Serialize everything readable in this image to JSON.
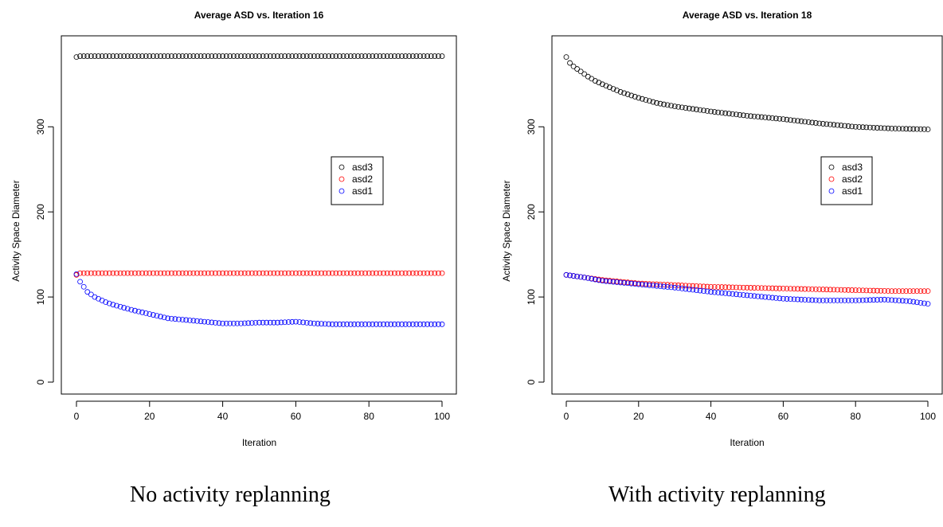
{
  "captions": {
    "left": "No activity replanning",
    "right": "With activity replanning"
  },
  "colors": {
    "asd3": "#000000",
    "asd2": "#ff0000",
    "asd1": "#0000ff"
  },
  "chart_data": [
    {
      "type": "scatter",
      "title": "Average ASD vs. Iteration 16",
      "xlabel": "Iteration",
      "ylabel": "Activity Space Diameter",
      "xlim": [
        0,
        100
      ],
      "ylim": [
        0,
        385
      ],
      "xticks": [
        "0",
        "20",
        "40",
        "60",
        "80",
        "100"
      ],
      "yticks": [
        "0",
        "100",
        "200",
        "300"
      ],
      "legend_position": "right-center",
      "series": [
        {
          "name": "asd3",
          "color": "#000000",
          "anchors": [
            [
              0,
              382
            ],
            [
              1,
              383
            ],
            [
              100,
              383
            ]
          ]
        },
        {
          "name": "asd2",
          "color": "#ff0000",
          "anchors": [
            [
              0,
              126
            ],
            [
              1,
              128
            ],
            [
              100,
              128
            ]
          ]
        },
        {
          "name": "asd1",
          "color": "#0000ff",
          "anchors": [
            [
              0,
              127
            ],
            [
              1,
              118
            ],
            [
              2,
              112
            ],
            [
              3,
              106
            ],
            [
              5,
              100
            ],
            [
              8,
              94
            ],
            [
              10,
              91
            ],
            [
              15,
              85
            ],
            [
              20,
              80
            ],
            [
              25,
              75
            ],
            [
              30,
              73
            ],
            [
              35,
              71
            ],
            [
              40,
              69
            ],
            [
              45,
              69
            ],
            [
              50,
              70
            ],
            [
              55,
              70
            ],
            [
              60,
              71
            ],
            [
              65,
              69
            ],
            [
              70,
              68
            ],
            [
              80,
              68
            ],
            [
              90,
              68
            ],
            [
              100,
              68
            ]
          ]
        }
      ]
    },
    {
      "type": "scatter",
      "title": "Average ASD vs. Iteration 18",
      "xlabel": "Iteration",
      "ylabel": "Activity Space Diameter",
      "xlim": [
        0,
        100
      ],
      "ylim": [
        0,
        385
      ],
      "xticks": [
        "0",
        "20",
        "40",
        "60",
        "80",
        "100"
      ],
      "yticks": [
        "0",
        "100",
        "200",
        "300"
      ],
      "legend_position": "right-center",
      "series": [
        {
          "name": "asd3",
          "color": "#000000",
          "anchors": [
            [
              0,
              382
            ],
            [
              1,
              375
            ],
            [
              2,
              371
            ],
            [
              4,
              365
            ],
            [
              6,
              359
            ],
            [
              8,
              354
            ],
            [
              10,
              350
            ],
            [
              15,
              341
            ],
            [
              20,
              334
            ],
            [
              25,
              328
            ],
            [
              30,
              324
            ],
            [
              40,
              318
            ],
            [
              50,
              313
            ],
            [
              60,
              309
            ],
            [
              70,
              304
            ],
            [
              80,
              300
            ],
            [
              90,
              298
            ],
            [
              100,
              297
            ]
          ]
        },
        {
          "name": "asd2",
          "color": "#ff0000",
          "anchors": [
            [
              0,
              126
            ],
            [
              5,
              123
            ],
            [
              10,
              120
            ],
            [
              20,
              116
            ],
            [
              30,
              114
            ],
            [
              40,
              112
            ],
            [
              50,
              111
            ],
            [
              60,
              110
            ],
            [
              70,
              109
            ],
            [
              80,
              108
            ],
            [
              90,
              107
            ],
            [
              100,
              107
            ]
          ]
        },
        {
          "name": "asd1",
          "color": "#0000ff",
          "anchors": [
            [
              0,
              126
            ],
            [
              5,
              123
            ],
            [
              10,
              119
            ],
            [
              20,
              115
            ],
            [
              30,
              111
            ],
            [
              40,
              106
            ],
            [
              50,
              102
            ],
            [
              60,
              98
            ],
            [
              70,
              96
            ],
            [
              80,
              96
            ],
            [
              88,
              97
            ],
            [
              95,
              95
            ],
            [
              100,
              92
            ]
          ]
        }
      ]
    }
  ]
}
